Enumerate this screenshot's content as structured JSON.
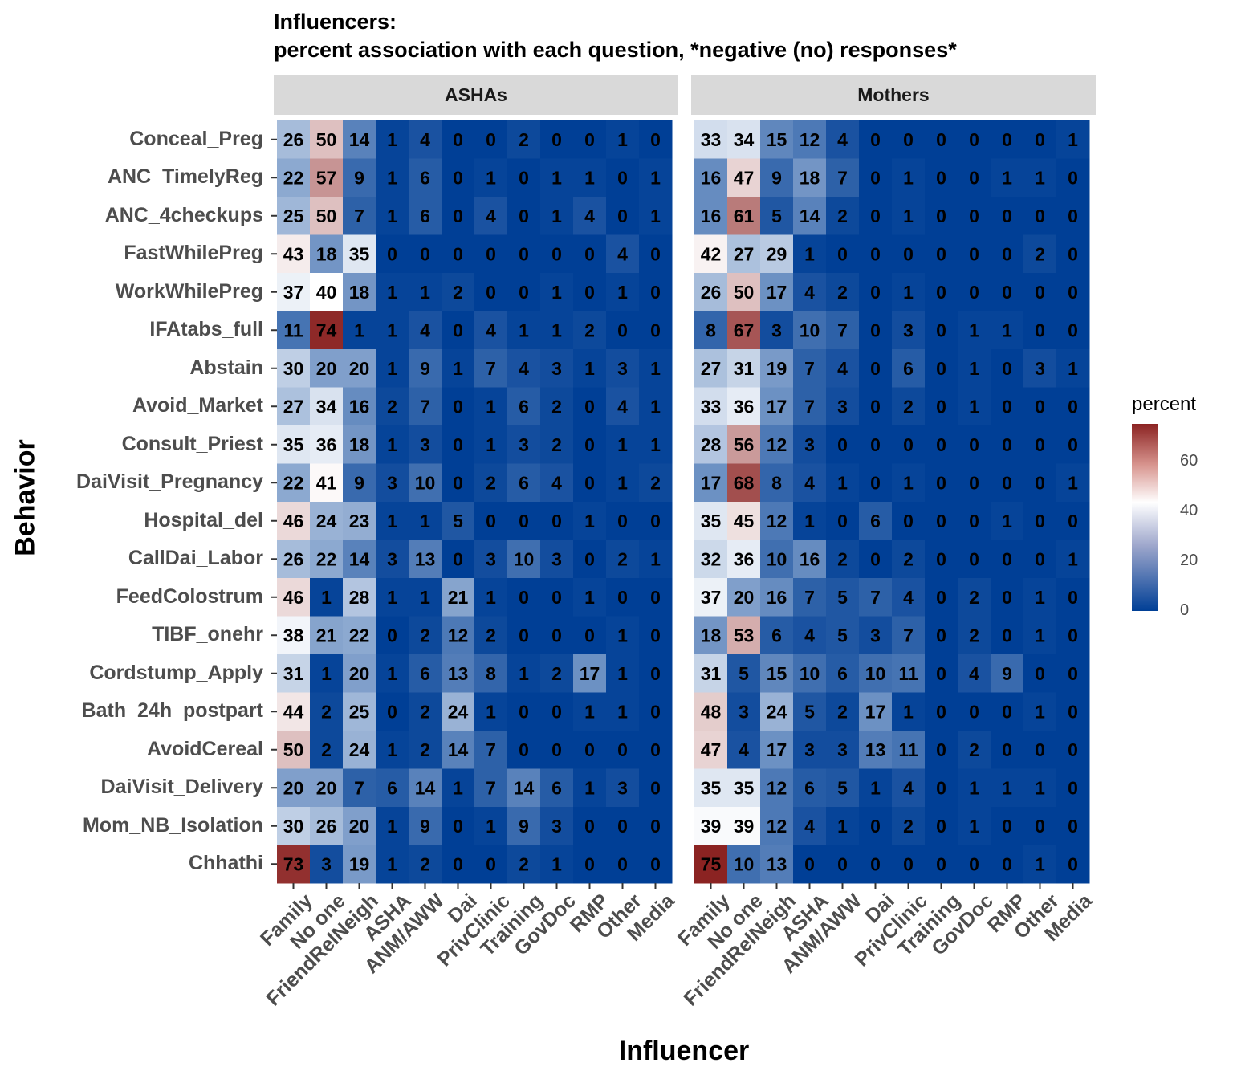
{
  "chart_data": {
    "type": "heatmap",
    "title": "Influencers:",
    "subtitle": "percent association with each question, *negative (no) responses*",
    "xlabel": "Influencer",
    "ylabel": "Behavior",
    "legend_title": "percent",
    "legend_ticks": [
      0,
      20,
      40,
      60
    ],
    "color_scale": {
      "low": "#003f96",
      "mid": "#ffffff",
      "high": "#8b2322",
      "min": 0,
      "mid_value": 40,
      "max": 75
    },
    "influencers": [
      "Family",
      "No one",
      "FriendRelNeigh",
      "ASHA",
      "ANM/AWW",
      "Dai",
      "PrivClinic",
      "Training",
      "GovDoc",
      "RMP",
      "Other",
      "Media"
    ],
    "behaviors": [
      "Conceal_Preg",
      "ANC_TimelyReg",
      "ANC_4checkups",
      "FastWhilePreg",
      "WorkWhilePreg",
      "IFAtabs_full",
      "Abstain",
      "Avoid_Market",
      "Consult_Priest",
      "DaiVisit_Pregnancy",
      "Hospital_del",
      "CallDai_Labor",
      "FeedColostrum",
      "TIBF_onehr",
      "Cordstump_Apply",
      "Bath_24h_postpart",
      "AvoidCereal",
      "DaiVisit_Delivery",
      "Mom_NB_Isolation",
      "Chhathi"
    ],
    "panels": [
      {
        "name": "ASHAs",
        "values": [
          [
            26,
            50,
            14,
            1,
            4,
            0,
            0,
            2,
            0,
            0,
            1,
            0
          ],
          [
            22,
            57,
            9,
            1,
            6,
            0,
            1,
            0,
            1,
            1,
            0,
            1
          ],
          [
            25,
            50,
            7,
            1,
            6,
            0,
            4,
            0,
            1,
            4,
            0,
            1
          ],
          [
            43,
            18,
            35,
            0,
            0,
            0,
            0,
            0,
            0,
            0,
            4,
            0
          ],
          [
            37,
            40,
            18,
            1,
            1,
            2,
            0,
            0,
            1,
            0,
            1,
            0
          ],
          [
            11,
            74,
            1,
            1,
            4,
            0,
            4,
            1,
            1,
            2,
            0,
            0
          ],
          [
            30,
            20,
            20,
            1,
            9,
            1,
            7,
            4,
            3,
            1,
            3,
            1
          ],
          [
            27,
            34,
            16,
            2,
            7,
            0,
            1,
            6,
            2,
            0,
            4,
            1
          ],
          [
            35,
            36,
            18,
            1,
            3,
            0,
            1,
            3,
            2,
            0,
            1,
            1
          ],
          [
            22,
            41,
            9,
            3,
            10,
            0,
            2,
            6,
            4,
            0,
            1,
            2
          ],
          [
            46,
            24,
            23,
            1,
            1,
            5,
            0,
            0,
            0,
            1,
            0,
            0
          ],
          [
            26,
            22,
            14,
            3,
            13,
            0,
            3,
            10,
            3,
            0,
            2,
            1
          ],
          [
            46,
            1,
            28,
            1,
            1,
            21,
            1,
            0,
            0,
            1,
            0,
            0
          ],
          [
            38,
            21,
            22,
            0,
            2,
            12,
            2,
            0,
            0,
            0,
            1,
            0
          ],
          [
            31,
            1,
            20,
            1,
            6,
            13,
            8,
            1,
            2,
            17,
            1,
            0
          ],
          [
            44,
            2,
            25,
            0,
            2,
            24,
            1,
            0,
            0,
            1,
            1,
            0
          ],
          [
            50,
            2,
            24,
            1,
            2,
            14,
            7,
            0,
            0,
            0,
            0,
            0
          ],
          [
            20,
            20,
            7,
            6,
            14,
            1,
            7,
            14,
            6,
            1,
            3,
            0
          ],
          [
            30,
            26,
            20,
            1,
            9,
            0,
            1,
            9,
            3,
            0,
            0,
            0
          ],
          [
            73,
            3,
            19,
            1,
            2,
            0,
            0,
            2,
            1,
            0,
            0,
            0
          ]
        ]
      },
      {
        "name": "Mothers",
        "values": [
          [
            33,
            34,
            15,
            12,
            4,
            0,
            0,
            0,
            0,
            0,
            0,
            1
          ],
          [
            16,
            47,
            9,
            18,
            7,
            0,
            1,
            0,
            0,
            1,
            1,
            0
          ],
          [
            16,
            61,
            5,
            14,
            2,
            0,
            1,
            0,
            0,
            0,
            0,
            0
          ],
          [
            42,
            27,
            29,
            1,
            0,
            0,
            0,
            0,
            0,
            0,
            2,
            0
          ],
          [
            26,
            50,
            17,
            4,
            2,
            0,
            1,
            0,
            0,
            0,
            0,
            0
          ],
          [
            8,
            67,
            3,
            10,
            7,
            0,
            3,
            0,
            1,
            1,
            0,
            0
          ],
          [
            27,
            31,
            19,
            7,
            4,
            0,
            6,
            0,
            1,
            0,
            3,
            1
          ],
          [
            33,
            36,
            17,
            7,
            3,
            0,
            2,
            0,
            1,
            0,
            0,
            0
          ],
          [
            28,
            56,
            12,
            3,
            0,
            0,
            0,
            0,
            0,
            0,
            0,
            0
          ],
          [
            17,
            68,
            8,
            4,
            1,
            0,
            1,
            0,
            0,
            0,
            0,
            1
          ],
          [
            35,
            45,
            12,
            1,
            0,
            6,
            0,
            0,
            0,
            1,
            0,
            0
          ],
          [
            32,
            36,
            10,
            16,
            2,
            0,
            2,
            0,
            0,
            0,
            0,
            1
          ],
          [
            37,
            20,
            16,
            7,
            5,
            7,
            4,
            0,
            2,
            0,
            1,
            0
          ],
          [
            18,
            53,
            6,
            4,
            5,
            3,
            7,
            0,
            2,
            0,
            1,
            0
          ],
          [
            31,
            5,
            15,
            10,
            6,
            10,
            11,
            0,
            4,
            9,
            0,
            0
          ],
          [
            48,
            3,
            24,
            5,
            2,
            17,
            1,
            0,
            0,
            0,
            1,
            0
          ],
          [
            47,
            4,
            17,
            3,
            3,
            13,
            11,
            0,
            2,
            0,
            0,
            0
          ],
          [
            35,
            35,
            12,
            6,
            5,
            1,
            4,
            0,
            1,
            1,
            1,
            0
          ],
          [
            39,
            39,
            12,
            4,
            1,
            0,
            2,
            0,
            1,
            0,
            0,
            0
          ],
          [
            75,
            10,
            13,
            0,
            0,
            0,
            0,
            0,
            0,
            0,
            1,
            0
          ]
        ]
      }
    ]
  }
}
